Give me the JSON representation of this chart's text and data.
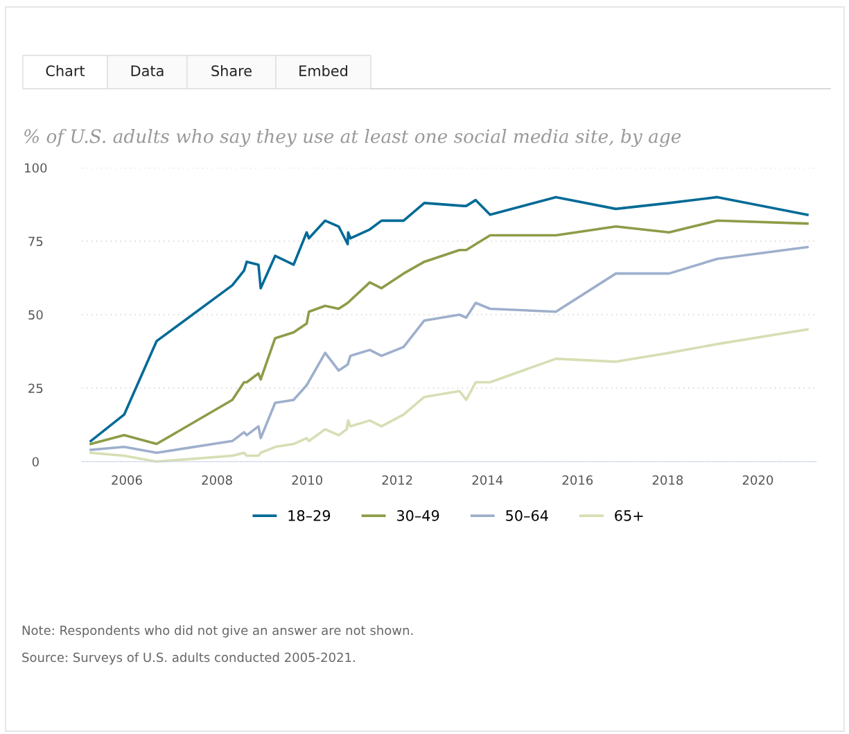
{
  "chart_data": {
    "type": "line",
    "title": "% of U.S. adults who say they use at least one social media site, by age",
    "annotations": [
      "Chart",
      "Data",
      "Share",
      "Embed",
      "Note: Respondents who did not give an answer are not shown.",
      "Source: Surveys of U.S. adults conducted 2005-2021."
    ],
    "series": [
      {
        "name": "18–29",
        "color": "#006a96",
        "x": [
          2005.2,
          2005.94,
          2006.66,
          2008.34,
          2008.6,
          2008.66,
          2008.92,
          2008.97,
          2009.29,
          2009.7,
          2009.99,
          2010.04,
          2010.4,
          2010.7,
          2010.9,
          2010.91,
          2010.96,
          2011.39,
          2011.65,
          2012.14,
          2012.6,
          2013.47,
          2013.53,
          2013.74,
          2014.06,
          2015.52,
          2016.85,
          2018.03,
          2019.1,
          2021.1
        ],
        "values": [
          7,
          16,
          41,
          60,
          65,
          68,
          67,
          59,
          70,
          67,
          78,
          76,
          82,
          80,
          74,
          78,
          76,
          79,
          82,
          82,
          88,
          87,
          87,
          89,
          84,
          90,
          86,
          88,
          90,
          84
        ]
      },
      {
        "name": "30–49",
        "color": "#8c9c48",
        "x": [
          2005.2,
          2005.94,
          2006.66,
          2008.34,
          2008.6,
          2008.66,
          2008.92,
          2008.97,
          2009.29,
          2009.7,
          2009.99,
          2010.04,
          2010.4,
          2010.7,
          2010.9,
          2011.39,
          2011.65,
          2012.14,
          2012.6,
          2013.38,
          2013.53,
          2014.06,
          2015.52,
          2016.85,
          2018.03,
          2019.1,
          2021.1
        ],
        "values": [
          6,
          9,
          6,
          21,
          27,
          27,
          30,
          28,
          42,
          44,
          47,
          51,
          53,
          52,
          54,
          61,
          59,
          64,
          68,
          72,
          72,
          77,
          77,
          80,
          78,
          82,
          81
        ]
      },
      {
        "name": "50–64",
        "color": "#9eafcc",
        "x": [
          2005.2,
          2005.94,
          2006.66,
          2008.34,
          2008.6,
          2008.66,
          2008.92,
          2008.97,
          2009.29,
          2009.7,
          2009.99,
          2010.4,
          2010.7,
          2010.9,
          2010.96,
          2011.39,
          2011.65,
          2012.14,
          2012.6,
          2013.38,
          2013.53,
          2013.74,
          2014.06,
          2015.52,
          2016.85,
          2018.03,
          2019.1,
          2021.1
        ],
        "values": [
          4,
          5,
          3,
          7,
          10,
          9,
          12,
          8,
          20,
          21,
          26,
          37,
          31,
          33,
          36,
          38,
          36,
          39,
          48,
          50,
          49,
          54,
          52,
          51,
          64,
          64,
          69,
          73
        ]
      },
      {
        "name": "65+",
        "color": "#d5dfb4",
        "x": [
          2005.2,
          2005.94,
          2006.66,
          2008.34,
          2008.6,
          2008.66,
          2008.92,
          2008.97,
          2009.29,
          2009.7,
          2009.99,
          2010.04,
          2010.4,
          2010.7,
          2010.88,
          2010.91,
          2010.96,
          2011.39,
          2011.65,
          2012.14,
          2012.6,
          2013.38,
          2013.53,
          2013.74,
          2014.06,
          2015.52,
          2016.85,
          2018.03,
          2019.1,
          2021.1
        ],
        "values": [
          3,
          2,
          0,
          2,
          3,
          2,
          2,
          3,
          5,
          6,
          8,
          7,
          11,
          9,
          11,
          14,
          12,
          14,
          12,
          16,
          22,
          24,
          21,
          27,
          27,
          35,
          34,
          37,
          40,
          45
        ]
      }
    ],
    "xlim": [
      2005.0,
      2021.3
    ],
    "xticks": [
      2006,
      2008,
      2010,
      2012,
      2014,
      2016,
      2018,
      2020
    ],
    "ylim": [
      0,
      100
    ],
    "yticks": [
      0,
      25,
      50,
      75,
      100
    ],
    "grid": "y",
    "legend": "bottom",
    "marker": "none",
    "line_style": "solid"
  }
}
